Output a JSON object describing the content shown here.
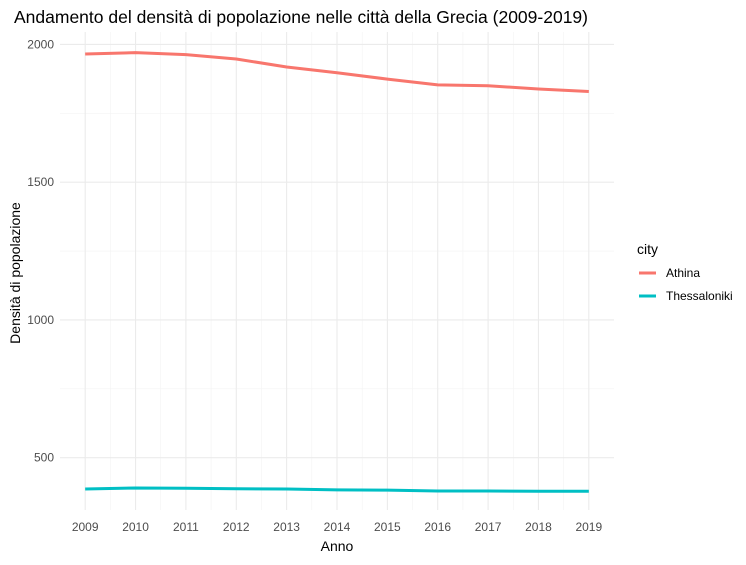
{
  "chart_data": {
    "type": "line",
    "title": "Andamento del densità di popolazione nelle città della Grecia (2009-2019)",
    "xlabel": "Anno",
    "ylabel": "Densità di popolazione",
    "x": [
      2009,
      2010,
      2011,
      2012,
      2013,
      2014,
      2015,
      2016,
      2017,
      2018,
      2019
    ],
    "x_ticks": [
      "2009",
      "2010",
      "2011",
      "2012",
      "2013",
      "2014",
      "2015",
      "2016",
      "2017",
      "2018",
      "2019"
    ],
    "y_ticks": [
      "500",
      "1000",
      "1500",
      "2000"
    ],
    "xlim": [
      2008.5,
      2019.5
    ],
    "ylim": [
      310,
      2045
    ],
    "grid": true,
    "legend": {
      "title": "city",
      "placement": "right"
    },
    "series": [
      {
        "name": "Athina",
        "color": "#F8766D",
        "values": [
          1965,
          1970,
          1963,
          1947,
          1918,
          1897,
          1874,
          1853,
          1850,
          1838,
          1829
        ]
      },
      {
        "name": "Thessaloniki",
        "color": "#00BFC4",
        "values": [
          386,
          390,
          389,
          387,
          386,
          383,
          382,
          379,
          379,
          378,
          378
        ]
      }
    ]
  }
}
